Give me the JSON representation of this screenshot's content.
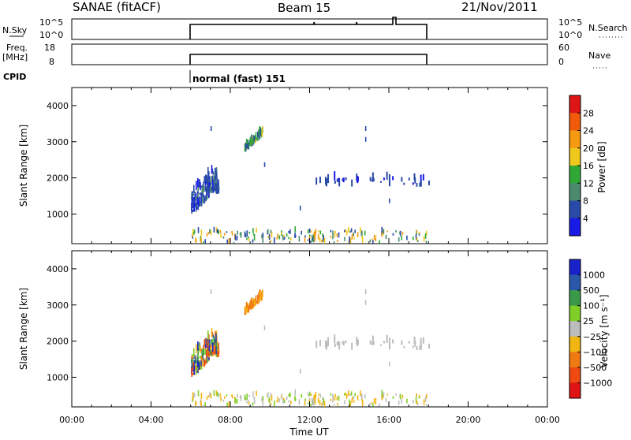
{
  "header": {
    "title": "SANAE (fitACF)",
    "beam": "Beam 15",
    "date": "21/Nov/2011"
  },
  "nsky_panel": {
    "left_label": "N.Sky",
    "right_label": "N.Search",
    "left_ticks": [
      "10^5",
      "10^0"
    ],
    "right_ticks": [
      "10^5",
      "10^0"
    ]
  },
  "freq_panel": {
    "left_label_1": "Freq.",
    "left_label_2": "[MHz]",
    "right_label": "Nave",
    "left_ticks": [
      "18",
      "8"
    ],
    "right_ticks": [
      "60",
      "0"
    ]
  },
  "cpid": {
    "label": "CPID",
    "value": "normal (fast) 151"
  },
  "axes": {
    "x_title": "Time UT",
    "x_ticks": [
      "00:00",
      "04:00",
      "08:00",
      "12:00",
      "16:00",
      "20:00",
      "00:00"
    ],
    "y_title": "Slant Range [km]",
    "y_ticks": [
      "4000",
      "3000",
      "2000",
      "1000"
    ]
  },
  "power_colorbar": {
    "title": "Power [dB]",
    "ticks": [
      "28",
      "24",
      "20",
      "16",
      "12",
      "8",
      "4"
    ],
    "colors": [
      "#dd1515",
      "#f05a0a",
      "#f59a12",
      "#f0c81e",
      "#2fa836",
      "#4a8a6e",
      "#2a4aa8",
      "#1a1ae6"
    ]
  },
  "velocity_colorbar": {
    "title": "Velocity [m s⁻¹]",
    "ticks": [
      "1000",
      "500",
      "100",
      "25",
      "−25",
      "−100",
      "−500",
      "−1000"
    ],
    "colors": [
      "#1a22cc",
      "#2a58a8",
      "#3a9a4a",
      "#7fcf28",
      "#bdbdbd",
      "#f2b612",
      "#f07a12",
      "#ee4a12",
      "#e01414"
    ]
  },
  "chart_data": {
    "type": "heatmap",
    "x_range_hours": [
      0,
      24
    ],
    "y_range_km": [
      180,
      4500
    ],
    "operation_window_hours": [
      6.0,
      18.0
    ],
    "scatter_regions": [
      {
        "t_start": 6.0,
        "t_end": 7.3,
        "r_min": 900,
        "r_max": 2200,
        "description_key": "near-range-echo"
      },
      {
        "t_start": 8.7,
        "t_end": 9.6,
        "r_min": 2750,
        "r_max": 3200,
        "description_key": "patch-3000km"
      },
      {
        "t_start": 12.3,
        "t_end": 18.0,
        "r_min": 1750,
        "r_max": 1950,
        "description_key": "sparse-1900km"
      },
      {
        "t_start": 6.0,
        "t_end": 18.0,
        "r_min": 180,
        "r_max": 500,
        "description_key": "ground-band"
      }
    ]
  }
}
